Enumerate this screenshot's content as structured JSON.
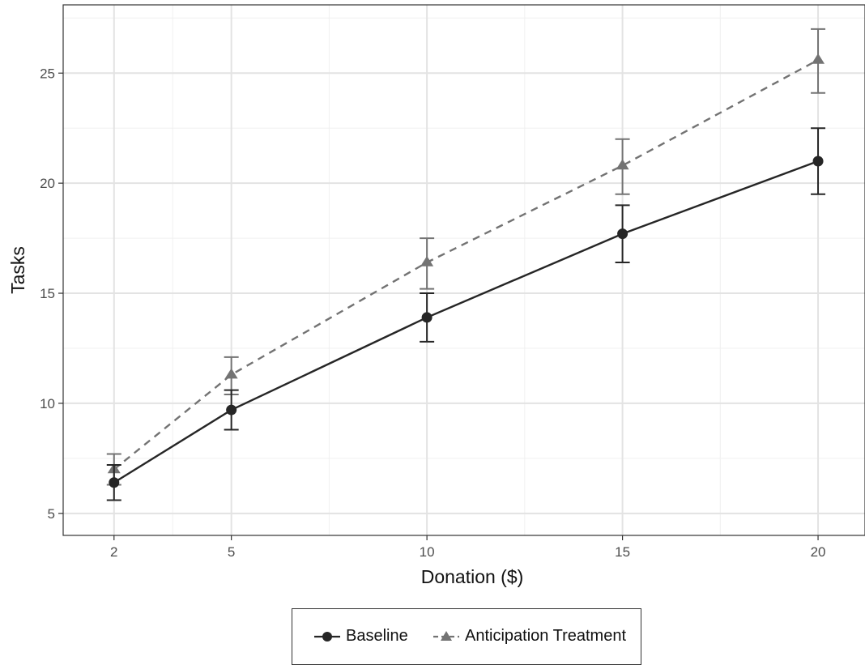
{
  "chart_data": {
    "type": "line",
    "title": "",
    "xlabel": "Donation ($)",
    "ylabel": "Tasks",
    "x": [
      2,
      5,
      10,
      15,
      20
    ],
    "x_ticks": [
      2,
      5,
      10,
      15,
      20
    ],
    "y_ticks": [
      5,
      10,
      15,
      20,
      25
    ],
    "xlim": [
      0.7,
      21.2
    ],
    "ylim": [
      4.0,
      28.1
    ],
    "grid": true,
    "legend_position": "bottom",
    "series": [
      {
        "name": "Baseline",
        "marker": "circle",
        "line_style": "solid",
        "color": "#262626",
        "values": [
          6.4,
          9.7,
          13.9,
          17.7,
          21.0
        ],
        "error_low": [
          5.6,
          8.8,
          12.8,
          16.4,
          19.5
        ],
        "error_high": [
          7.2,
          10.6,
          15.0,
          19.0,
          22.5
        ]
      },
      {
        "name": "Anticipation Treatment",
        "marker": "triangle",
        "line_style": "dashed",
        "color": "#737373",
        "values": [
          7.0,
          11.3,
          16.4,
          20.8,
          25.6
        ],
        "error_low": [
          6.3,
          10.4,
          15.2,
          19.5,
          24.1
        ],
        "error_high": [
          7.7,
          12.1,
          17.5,
          22.0,
          27.0
        ]
      }
    ]
  }
}
